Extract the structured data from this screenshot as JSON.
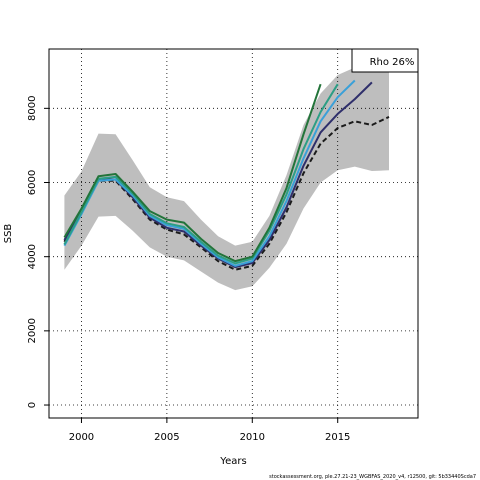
{
  "chart_data": {
    "type": "line",
    "title": "",
    "xlabel": "Years",
    "ylabel": "SSB",
    "xlim": [
      1998.1,
      2019.7
    ],
    "ylim": [
      -350,
      9600
    ],
    "x_ticks": [
      2000,
      2005,
      2010,
      2015
    ],
    "y_ticks": [
      0,
      2000,
      4000,
      6000,
      8000
    ],
    "grid": true,
    "legend": {
      "placement": "top-right",
      "text": "Rho 26%"
    },
    "footer": "stockassessment.org, ple.27.21-23_WGBFAS_2020_v4, r12500, git: 5b33440Scda7",
    "confidence_band": {
      "x": [
        1999,
        2000,
        2001,
        2002,
        2003,
        2004,
        2005,
        2006,
        2007,
        2008,
        2009,
        2010,
        2011,
        2012,
        2013,
        2014,
        2015,
        2016,
        2017,
        2018
      ],
      "lower": [
        3650,
        4300,
        5080,
        5100,
        4700,
        4250,
        4000,
        3900,
        3600,
        3300,
        3100,
        3200,
        3700,
        4350,
        5300,
        6000,
        6330,
        6430,
        6310,
        6330
      ],
      "upper": [
        5650,
        6300,
        7320,
        7300,
        6600,
        5870,
        5600,
        5500,
        5000,
        4550,
        4300,
        4400,
        5100,
        6200,
        7550,
        8400,
        8900,
        9100,
        9100,
        9350
      ]
    },
    "series": [
      {
        "color": "#1b1b1b",
        "dashed": true,
        "x": [
          1999,
          2000,
          2001,
          2002,
          2003,
          2004,
          2005,
          2006,
          2007,
          2008,
          2009,
          2010,
          2011,
          2012,
          2013,
          2014,
          2015,
          2016,
          2017,
          2018
        ],
        "values": [
          4400,
          5200,
          6050,
          6050,
          5550,
          5000,
          4730,
          4600,
          4250,
          3880,
          3650,
          3750,
          4350,
          5200,
          6250,
          7050,
          7470,
          7650,
          7550,
          7770
        ]
      },
      {
        "color": "#2f2f6b",
        "dashed": false,
        "x": [
          1999,
          2000,
          2001,
          2002,
          2003,
          2004,
          2005,
          2006,
          2007,
          2008,
          2009,
          2010,
          2011,
          2012,
          2013,
          2014,
          2015,
          2016,
          2017
        ],
        "values": [
          4450,
          5250,
          6080,
          6080,
          5600,
          5050,
          4780,
          4680,
          4300,
          3950,
          3720,
          3830,
          4450,
          5330,
          6450,
          7350,
          7850,
          8250,
          8700
        ]
      },
      {
        "color": "#3aa0d8",
        "dashed": false,
        "x": [
          1999,
          2000,
          2001,
          2002,
          2003,
          2004,
          2005,
          2006,
          2007,
          2008,
          2009,
          2010,
          2011,
          2012,
          2013,
          2014,
          2015,
          2016
        ],
        "values": [
          4300,
          5150,
          6050,
          6080,
          5650,
          5100,
          4850,
          4750,
          4350,
          3980,
          3750,
          3880,
          4550,
          5500,
          6650,
          7650,
          8300,
          8750
        ]
      },
      {
        "color": "#2c9e85",
        "dashed": false,
        "x": [
          1999,
          2000,
          2001,
          2002,
          2003,
          2004,
          2005,
          2006,
          2007,
          2008,
          2009,
          2010,
          2011,
          2012,
          2013,
          2014,
          2015
        ],
        "values": [
          4330,
          5200,
          6100,
          6150,
          5700,
          5150,
          4900,
          4800,
          4400,
          4030,
          3820,
          3950,
          4700,
          5680,
          6900,
          7900,
          8650
        ]
      },
      {
        "color": "#23743a",
        "dashed": false,
        "x": [
          1999,
          2000,
          2001,
          2002,
          2003,
          2004,
          2005,
          2006,
          2007,
          2008,
          2009,
          2010,
          2011,
          2012,
          2013,
          2014
        ],
        "values": [
          4520,
          5300,
          6170,
          6230,
          5750,
          5230,
          5000,
          4920,
          4480,
          4100,
          3880,
          4000,
          4780,
          5850,
          7300,
          8650
        ]
      }
    ]
  }
}
